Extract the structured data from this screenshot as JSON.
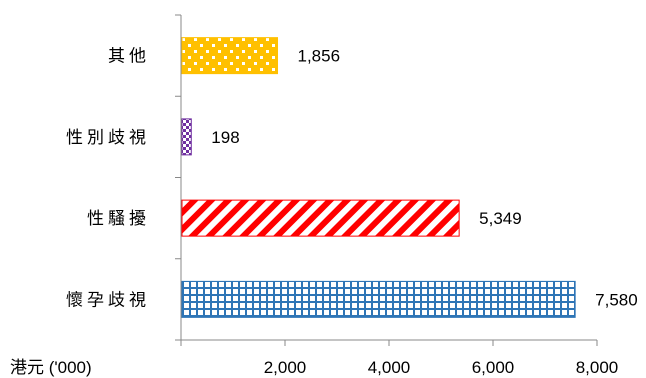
{
  "chart_data": {
    "type": "bar",
    "orientation": "horizontal",
    "categories": [
      "其他",
      "性別歧視",
      "性騷擾",
      "懷孕歧視"
    ],
    "values": [
      1856,
      198,
      5349,
      7580
    ],
    "value_labels": [
      "1,856",
      "198",
      "5,349",
      "7,580"
    ],
    "colors": [
      "#FFC000",
      "#7030A0",
      "#FF0000",
      "#2E75B6"
    ],
    "patterns": [
      "dotted",
      "checker",
      "diagonal-stripes",
      "grid"
    ],
    "x_ticks": [
      0,
      2000,
      4000,
      6000,
      8000
    ],
    "x_tick_labels": [
      "",
      "2,000",
      "4,000",
      "6,000",
      "8,000"
    ],
    "xlim": [
      0,
      8000
    ],
    "unit_label": "港元 ('000)",
    "grid": false,
    "legend": "none"
  }
}
